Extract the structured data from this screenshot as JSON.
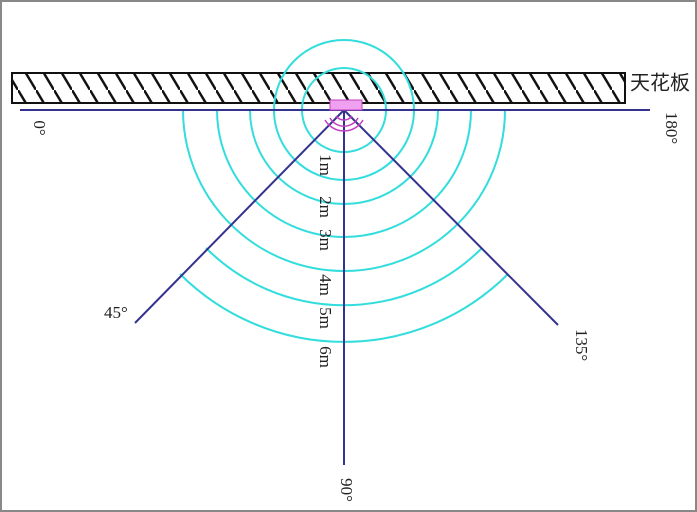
{
  "ceiling_label": "天花板",
  "angles": {
    "left": "0°",
    "right": "180°",
    "left_diagonal": "45°",
    "right_diagonal": "135°",
    "bottom": "90°"
  },
  "distances": [
    "1m",
    "2m",
    "3m",
    "4m",
    "5m",
    "6m"
  ]
}
